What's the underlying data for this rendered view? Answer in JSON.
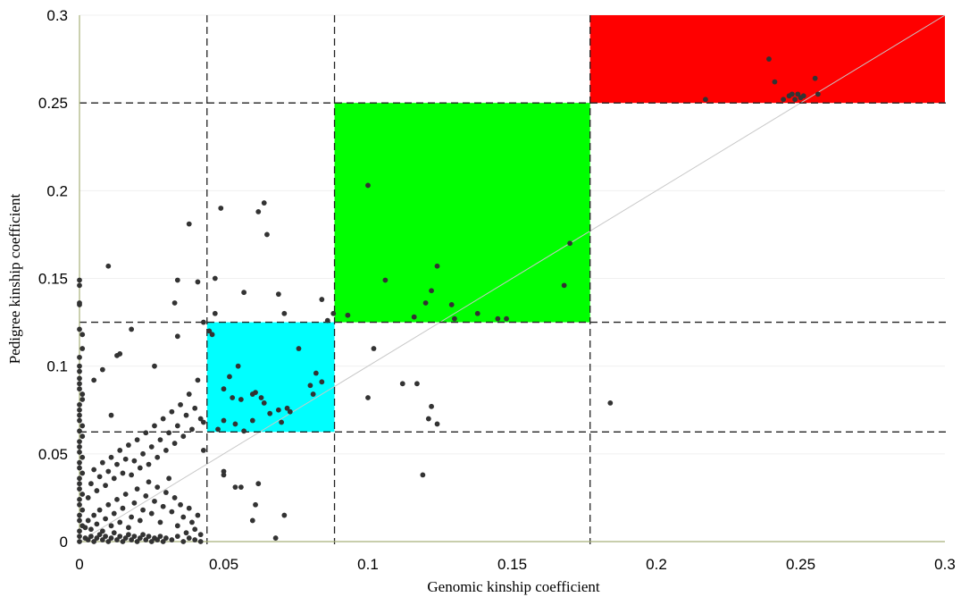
{
  "chart_data": {
    "type": "scatter",
    "title": "",
    "xlabel": "Genomic kinship coefficient",
    "ylabel": "Pedigree kinship coefficient",
    "xlim": [
      0,
      0.3
    ],
    "ylim": [
      0,
      0.3
    ],
    "x_ticks": [
      0,
      0.05,
      0.1,
      0.15,
      0.2,
      0.25,
      0.3
    ],
    "y_ticks": [
      0,
      0.05,
      0.1,
      0.15,
      0.2,
      0.25,
      0.3
    ],
    "x_tick_labels": [
      "0",
      "0.05",
      "0.1",
      "0.15",
      "0.2",
      "0.25",
      "0.3"
    ],
    "y_tick_labels": [
      "0",
      "0.05",
      "0.1",
      "0.15",
      "0.2",
      "0.25",
      "0.3"
    ],
    "grid": true,
    "point_color": "#333333",
    "diagonal_line": {
      "from": [
        0,
        0
      ],
      "to": [
        0.3,
        0.3
      ],
      "color": "#c8c8c8"
    },
    "threshold_lines": {
      "x": [
        0.0442,
        0.0884,
        0.177
      ],
      "y": [
        0.0625,
        0.125,
        0.25
      ]
    },
    "regions": [
      {
        "x": [
          0.0442,
          0.0884
        ],
        "y": [
          0.0625,
          0.125
        ],
        "color": "#00ffff"
      },
      {
        "x": [
          0.0884,
          0.177
        ],
        "y": [
          0.125,
          0.25
        ],
        "color": "#00ff00"
      },
      {
        "x": [
          0.177,
          0.3
        ],
        "y": [
          0.25,
          0.3
        ],
        "color": "#ff0000"
      }
    ],
    "points": [
      [
        0.0,
        0.149
      ],
      [
        0.0,
        0.146
      ],
      [
        0.0,
        0.136
      ],
      [
        0.0,
        0.135
      ],
      [
        0.0,
        0.121
      ],
      [
        0.001,
        0.118
      ],
      [
        0.001,
        0.11
      ],
      [
        0.0,
        0.105
      ],
      [
        0.0,
        0.1
      ],
      [
        0.0,
        0.097
      ],
      [
        0.0,
        0.093
      ],
      [
        0.0,
        0.09
      ],
      [
        0.0,
        0.087
      ],
      [
        0.001,
        0.084
      ],
      [
        0.001,
        0.081
      ],
      [
        0.0,
        0.078
      ],
      [
        0.0,
        0.075
      ],
      [
        0.0,
        0.072
      ],
      [
        0.0,
        0.069
      ],
      [
        0.001,
        0.066
      ],
      [
        0.0,
        0.063
      ],
      [
        0.001,
        0.06
      ],
      [
        0.0,
        0.057
      ],
      [
        0.0,
        0.054
      ],
      [
        0.0,
        0.051
      ],
      [
        0.001,
        0.048
      ],
      [
        0.0,
        0.045
      ],
      [
        0.0,
        0.042
      ],
      [
        0.001,
        0.039
      ],
      [
        0.0,
        0.036
      ],
      [
        0.0,
        0.033
      ],
      [
        0.0,
        0.03
      ],
      [
        0.001,
        0.027
      ],
      [
        0.0,
        0.024
      ],
      [
        0.0,
        0.021
      ],
      [
        0.001,
        0.018
      ],
      [
        0.0,
        0.015
      ],
      [
        0.0,
        0.012
      ],
      [
        0.001,
        0.009
      ],
      [
        0.0,
        0.006
      ],
      [
        0.0,
        0.003
      ],
      [
        0.0,
        0.0
      ],
      [
        0.002,
        0.002
      ],
      [
        0.003,
        0.001
      ],
      [
        0.004,
        0.003
      ],
      [
        0.005,
        0.0
      ],
      [
        0.006,
        0.002
      ],
      [
        0.007,
        0.004
      ],
      [
        0.008,
        0.001
      ],
      [
        0.009,
        0.003
      ],
      [
        0.01,
        0.0
      ],
      [
        0.011,
        0.002
      ],
      [
        0.012,
        0.005
      ],
      [
        0.013,
        0.001
      ],
      [
        0.014,
        0.003
      ],
      [
        0.015,
        0.0
      ],
      [
        0.016,
        0.002
      ],
      [
        0.017,
        0.004
      ],
      [
        0.018,
        0.001
      ],
      [
        0.019,
        0.003
      ],
      [
        0.02,
        0.0
      ],
      [
        0.021,
        0.002
      ],
      [
        0.022,
        0.004
      ],
      [
        0.023,
        0.001
      ],
      [
        0.024,
        0.003
      ],
      [
        0.025,
        0.0
      ],
      [
        0.026,
        0.002
      ],
      [
        0.027,
        0.001
      ],
      [
        0.028,
        0.003
      ],
      [
        0.029,
        0.0
      ],
      [
        0.03,
        0.002
      ],
      [
        0.032,
        0.001
      ],
      [
        0.034,
        0.003
      ],
      [
        0.036,
        0.0
      ],
      [
        0.038,
        0.002
      ],
      [
        0.04,
        0.001
      ],
      [
        0.042,
        0.0
      ],
      [
        0.002,
        0.008
      ],
      [
        0.003,
        0.012
      ],
      [
        0.004,
        0.007
      ],
      [
        0.005,
        0.015
      ],
      [
        0.006,
        0.01
      ],
      [
        0.007,
        0.018
      ],
      [
        0.008,
        0.006
      ],
      [
        0.009,
        0.013
      ],
      [
        0.01,
        0.021
      ],
      [
        0.011,
        0.009
      ],
      [
        0.012,
        0.016
      ],
      [
        0.013,
        0.024
      ],
      [
        0.014,
        0.011
      ],
      [
        0.015,
        0.019
      ],
      [
        0.016,
        0.027
      ],
      [
        0.017,
        0.008
      ],
      [
        0.018,
        0.014
      ],
      [
        0.019,
        0.022
      ],
      [
        0.02,
        0.03
      ],
      [
        0.021,
        0.012
      ],
      [
        0.022,
        0.018
      ],
      [
        0.023,
        0.026
      ],
      [
        0.024,
        0.034
      ],
      [
        0.025,
        0.016
      ],
      [
        0.026,
        0.023
      ],
      [
        0.027,
        0.031
      ],
      [
        0.028,
        0.011
      ],
      [
        0.029,
        0.02
      ],
      [
        0.03,
        0.028
      ],
      [
        0.031,
        0.036
      ],
      [
        0.032,
        0.017
      ],
      [
        0.033,
        0.025
      ],
      [
        0.034,
        0.009
      ],
      [
        0.035,
        0.021
      ],
      [
        0.036,
        0.014
      ],
      [
        0.037,
        0.005
      ],
      [
        0.038,
        0.019
      ],
      [
        0.039,
        0.011
      ],
      [
        0.04,
        0.007
      ],
      [
        0.041,
        0.015
      ],
      [
        0.042,
        0.004
      ],
      [
        0.003,
        0.025
      ],
      [
        0.004,
        0.033
      ],
      [
        0.005,
        0.041
      ],
      [
        0.006,
        0.029
      ],
      [
        0.007,
        0.037
      ],
      [
        0.008,
        0.045
      ],
      [
        0.009,
        0.032
      ],
      [
        0.01,
        0.04
      ],
      [
        0.011,
        0.048
      ],
      [
        0.012,
        0.036
      ],
      [
        0.013,
        0.044
      ],
      [
        0.014,
        0.052
      ],
      [
        0.015,
        0.039
      ],
      [
        0.016,
        0.047
      ],
      [
        0.017,
        0.055
      ],
      [
        0.018,
        0.038
      ],
      [
        0.019,
        0.046
      ],
      [
        0.02,
        0.058
      ],
      [
        0.021,
        0.042
      ],
      [
        0.022,
        0.05
      ],
      [
        0.023,
        0.062
      ],
      [
        0.024,
        0.044
      ],
      [
        0.025,
        0.054
      ],
      [
        0.026,
        0.066
      ],
      [
        0.027,
        0.048
      ],
      [
        0.028,
        0.058
      ],
      [
        0.029,
        0.07
      ],
      [
        0.03,
        0.052
      ],
      [
        0.031,
        0.062
      ],
      [
        0.032,
        0.074
      ],
      [
        0.033,
        0.056
      ],
      [
        0.034,
        0.066
      ],
      [
        0.035,
        0.078
      ],
      [
        0.036,
        0.06
      ],
      [
        0.037,
        0.072
      ],
      [
        0.038,
        0.084
      ],
      [
        0.039,
        0.064
      ],
      [
        0.04,
        0.076
      ],
      [
        0.041,
        0.092
      ],
      [
        0.042,
        0.07
      ],
      [
        0.043,
        0.068
      ],
      [
        0.043,
        0.052
      ],
      [
        0.01,
        0.157
      ],
      [
        0.018,
        0.121
      ],
      [
        0.013,
        0.106
      ],
      [
        0.014,
        0.107
      ],
      [
        0.008,
        0.098
      ],
      [
        0.005,
        0.092
      ],
      [
        0.011,
        0.072
      ],
      [
        0.026,
        0.1
      ],
      [
        0.033,
        0.136
      ],
      [
        0.034,
        0.149
      ],
      [
        0.034,
        0.117
      ],
      [
        0.038,
        0.181
      ],
      [
        0.041,
        0.148
      ],
      [
        0.043,
        0.125
      ],
      [
        0.045,
        0.12
      ],
      [
        0.047,
        0.15
      ],
      [
        0.047,
        0.13
      ],
      [
        0.046,
        0.118
      ],
      [
        0.049,
        0.19
      ],
      [
        0.062,
        0.188
      ],
      [
        0.064,
        0.193
      ],
      [
        0.065,
        0.175
      ],
      [
        0.057,
        0.142
      ],
      [
        0.069,
        0.141
      ],
      [
        0.071,
        0.13
      ],
      [
        0.076,
        0.11
      ],
      [
        0.061,
        0.085
      ],
      [
        0.06,
        0.084
      ],
      [
        0.06,
        0.069
      ],
      [
        0.063,
        0.082
      ],
      [
        0.064,
        0.079
      ],
      [
        0.066,
        0.073
      ],
      [
        0.069,
        0.075
      ],
      [
        0.07,
        0.068
      ],
      [
        0.072,
        0.076
      ],
      [
        0.073,
        0.074
      ],
      [
        0.056,
        0.081
      ],
      [
        0.054,
        0.067
      ],
      [
        0.057,
        0.063
      ],
      [
        0.053,
        0.082
      ],
      [
        0.052,
        0.094
      ],
      [
        0.055,
        0.1
      ],
      [
        0.05,
        0.087
      ],
      [
        0.05,
        0.069
      ],
      [
        0.048,
        0.064
      ],
      [
        0.05,
        0.038
      ],
      [
        0.05,
        0.04
      ],
      [
        0.054,
        0.031
      ],
      [
        0.056,
        0.031
      ],
      [
        0.06,
        0.012
      ],
      [
        0.061,
        0.021
      ],
      [
        0.062,
        0.033
      ],
      [
        0.068,
        0.002
      ],
      [
        0.071,
        0.015
      ],
      [
        0.08,
        0.089
      ],
      [
        0.082,
        0.096
      ],
      [
        0.081,
        0.084
      ],
      [
        0.084,
        0.091
      ],
      [
        0.086,
        0.126
      ],
      [
        0.084,
        0.138
      ],
      [
        0.088,
        0.13
      ],
      [
        0.093,
        0.129
      ],
      [
        0.1,
        0.203
      ],
      [
        0.102,
        0.11
      ],
      [
        0.106,
        0.149
      ],
      [
        0.1,
        0.082
      ],
      [
        0.116,
        0.128
      ],
      [
        0.12,
        0.136
      ],
      [
        0.122,
        0.143
      ],
      [
        0.124,
        0.157
      ],
      [
        0.13,
        0.127
      ],
      [
        0.138,
        0.13
      ],
      [
        0.145,
        0.127
      ],
      [
        0.129,
        0.135
      ],
      [
        0.148,
        0.127
      ],
      [
        0.168,
        0.146
      ],
      [
        0.17,
        0.17
      ],
      [
        0.112,
        0.09
      ],
      [
        0.117,
        0.09
      ],
      [
        0.122,
        0.077
      ],
      [
        0.121,
        0.07
      ],
      [
        0.124,
        0.067
      ],
      [
        0.119,
        0.038
      ],
      [
        0.184,
        0.079
      ],
      [
        0.217,
        0.252
      ],
      [
        0.239,
        0.275
      ],
      [
        0.241,
        0.262
      ],
      [
        0.244,
        0.252
      ],
      [
        0.246,
        0.254
      ],
      [
        0.247,
        0.255
      ],
      [
        0.248,
        0.252
      ],
      [
        0.249,
        0.255
      ],
      [
        0.25,
        0.253
      ],
      [
        0.251,
        0.254
      ],
      [
        0.255,
        0.264
      ],
      [
        0.256,
        0.255
      ]
    ]
  }
}
